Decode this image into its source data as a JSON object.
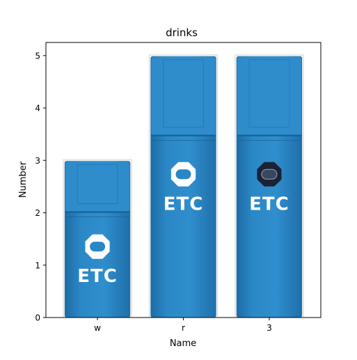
{
  "chart_data": {
    "type": "bar",
    "title": "drinks",
    "xlabel": "Name",
    "ylabel": "Number",
    "categories": [
      "w",
      "r",
      "3"
    ],
    "values": [
      3,
      5,
      5
    ],
    "ylim": [
      0,
      5.25
    ],
    "yticks": [
      0,
      1,
      2,
      3,
      4,
      5
    ],
    "grid": false,
    "bar_style": "pictorial-bottle",
    "bottle_logo_text": "ETC",
    "colors": {
      "bottle": "#2a86c4",
      "bottle_dark": "#1c6ea8",
      "cap": "#2f8dcc",
      "logo_ring": "#ffffff",
      "logo_text": "#ffffff",
      "logo_dark": "#1a2236"
    }
  }
}
